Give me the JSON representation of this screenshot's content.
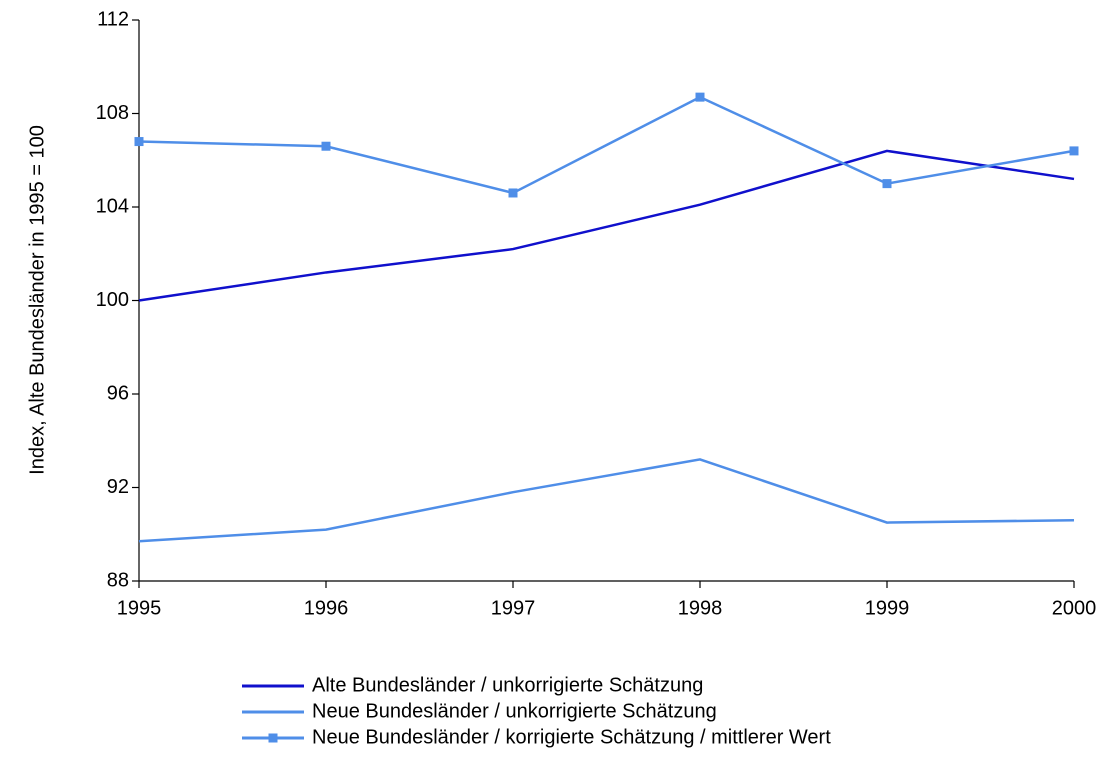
{
  "chart_data": {
    "type": "line",
    "y_label": "Index, Alte Bundesländer in 1995 = 100",
    "x": [
      1995,
      1996,
      1997,
      1998,
      1999,
      2000
    ],
    "xlim": [
      1995,
      2000
    ],
    "xticks": [
      1995,
      1996,
      1997,
      1998,
      1999,
      2000
    ],
    "ylim": [
      88,
      112
    ],
    "yticks": [
      88,
      92,
      96,
      100,
      104,
      108,
      112
    ],
    "grid": false,
    "legend": "bottom",
    "series": [
      {
        "name": "Alte Bundesländer / unkorrigierte Schätzung",
        "color": "#1010cc",
        "marker": "none",
        "values": [
          100,
          101.2,
          102.2,
          104.1,
          106.4,
          105.2
        ]
      },
      {
        "name": "Neue Bundesländer / unkorrigierte Schätzung",
        "color": "#4f8ee8",
        "marker": "none",
        "values": [
          89.7,
          90.2,
          91.8,
          93.2,
          90.5,
          90.6
        ]
      },
      {
        "name": "Neue Bundesländer / korrigierte Schätzung / mittlerer Wert",
        "color": "#4f8ee8",
        "marker": "square",
        "values": [
          106.8,
          106.6,
          104.6,
          108.7,
          105.0,
          106.4
        ]
      }
    ]
  }
}
